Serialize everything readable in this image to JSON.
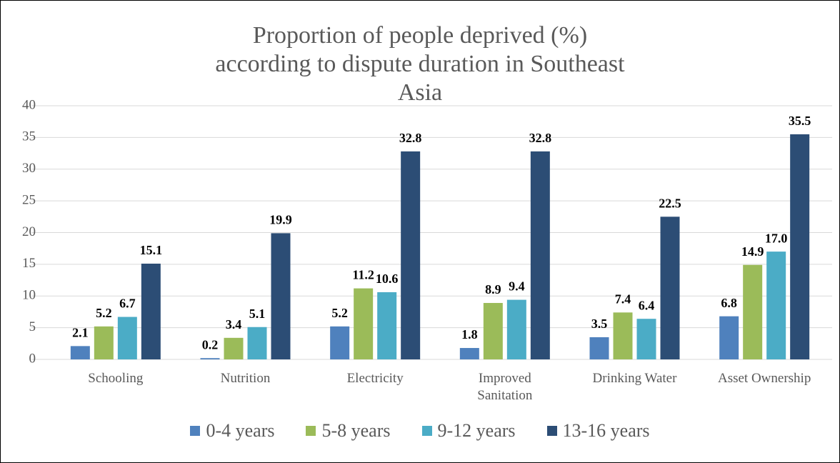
{
  "chart_data": {
    "type": "bar",
    "title": "Proportion of people deprived (%) according to dispute duration in Southeast Asia",
    "categories": [
      "Schooling",
      "Nutrition",
      "Electricity",
      "Improved Sanitation",
      "Drinking Water",
      "Asset Ownership"
    ],
    "series": [
      {
        "name": "0-4 years",
        "color": "#4f81bd",
        "values": [
          2.1,
          0.2,
          5.2,
          1.8,
          3.5,
          6.8
        ],
        "value_labels": [
          "2.1",
          "0.2",
          "5.2",
          "1.8",
          "3.5",
          "6.8"
        ]
      },
      {
        "name": "5-8 years",
        "color": "#9bbb59",
        "values": [
          5.2,
          3.4,
          11.2,
          8.9,
          7.4,
          14.9
        ],
        "value_labels": [
          "5.2",
          "3.4",
          "11.2",
          "8.9",
          "7.4",
          "14.9"
        ]
      },
      {
        "name": "9-12 years",
        "color": "#4bacc6",
        "values": [
          6.7,
          5.1,
          10.6,
          9.4,
          6.4,
          17.0
        ],
        "value_labels": [
          "6.7",
          "5.1",
          "10.6",
          "9.4",
          "6.4",
          "17.0"
        ]
      },
      {
        "name": "13-16 years",
        "color": "#2c4d75",
        "values": [
          15.1,
          19.9,
          32.8,
          32.8,
          22.5,
          35.5
        ],
        "value_labels": [
          "15.1",
          "19.9",
          "32.8",
          "32.8",
          "22.5",
          "35.5"
        ]
      }
    ],
    "ylim": [
      0,
      40
    ],
    "yticks": [
      0,
      5,
      10,
      15,
      20,
      25,
      30,
      35,
      40
    ],
    "grid": true,
    "legend": "bottom"
  }
}
